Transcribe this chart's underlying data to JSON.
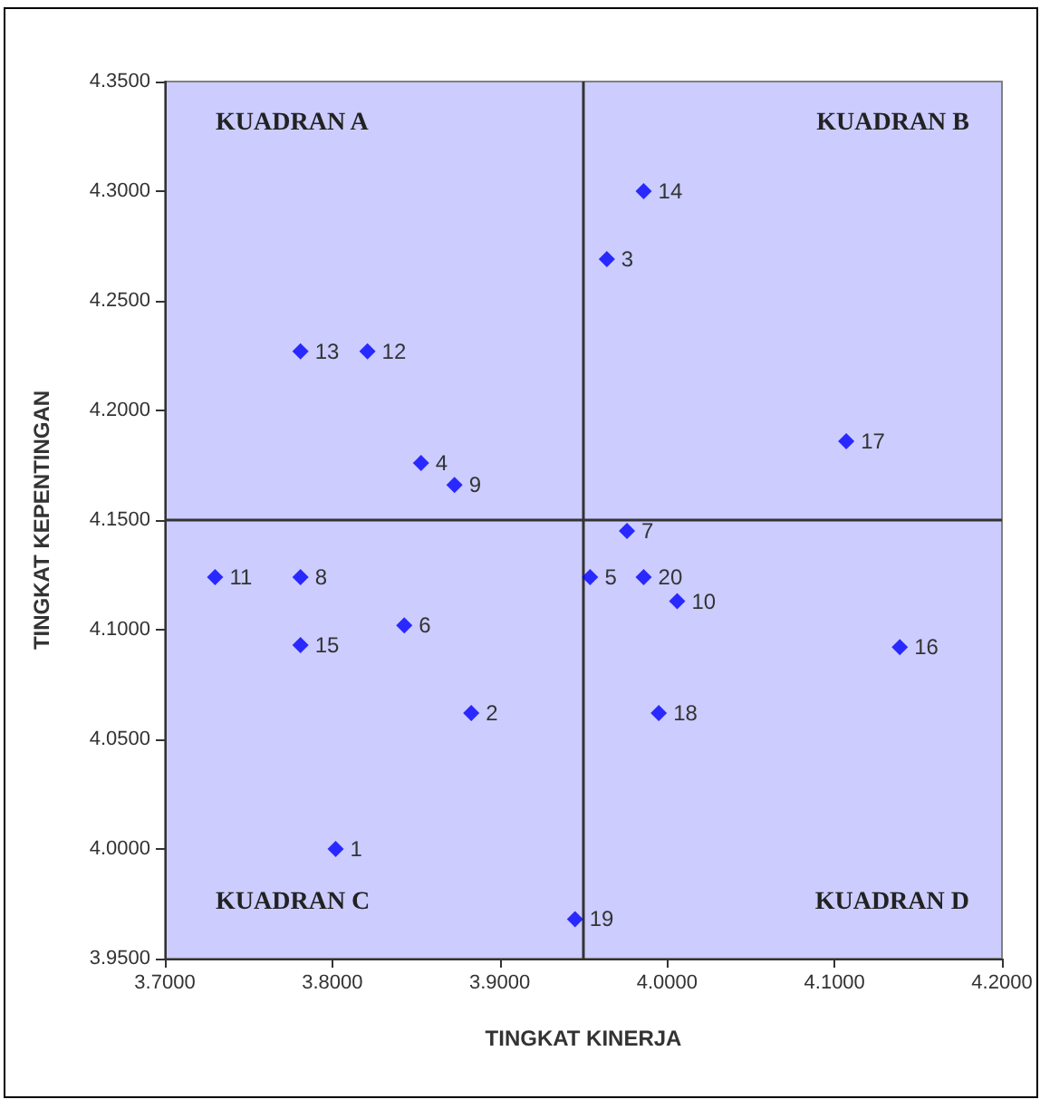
{
  "chart_data": {
    "type": "scatter",
    "xlabel": "TINGKAT KINERJA",
    "ylabel": "TINGKAT KEPENTINGAN",
    "x": [
      3.802,
      3.883,
      3.964,
      3.853,
      3.954,
      3.843,
      3.976,
      3.781,
      3.873,
      4.006,
      3.73,
      3.821,
      3.781,
      3.986,
      3.781,
      4.139,
      4.107,
      3.995,
      3.945,
      3.986
    ],
    "series": [
      {
        "color": "#0000ff",
        "values": [
          4.0,
          4.062,
          4.269,
          4.176,
          4.124,
          4.102,
          4.145,
          4.124,
          4.166,
          4.113,
          4.124,
          4.227,
          4.227,
          4.3,
          4.093,
          4.092,
          4.186,
          4.062,
          3.968,
          4.124
        ]
      }
    ],
    "xlim": [
      3.7,
      4.2
    ],
    "ylim": [
      3.95,
      4.35
    ],
    "xticks": [
      {
        "value": 3.7,
        "label": "3.7000"
      },
      {
        "value": 3.8,
        "label": "3.8000"
      },
      {
        "value": 3.9,
        "label": "3.9000"
      },
      {
        "value": 4.0,
        "label": "4.0000"
      },
      {
        "value": 4.1,
        "label": "4.1000"
      },
      {
        "value": 4.2,
        "label": "4.2000"
      }
    ],
    "yticks": [
      {
        "value": 3.95,
        "label": "3.9500"
      },
      {
        "value": 4.0,
        "label": "4.0000"
      },
      {
        "value": 4.05,
        "label": "4.0500"
      },
      {
        "value": 4.1,
        "label": "4.1000"
      },
      {
        "value": 4.15,
        "label": "4.1500"
      },
      {
        "value": 4.2,
        "label": "4.2000"
      },
      {
        "value": 4.25,
        "label": "4.2500"
      },
      {
        "value": 4.3,
        "label": "4.3000"
      },
      {
        "value": 4.35,
        "label": "4.3500"
      }
    ],
    "ref_lines": [
      {
        "axis": "x",
        "value": 3.95,
        "color": "#333333"
      },
      {
        "axis": "y",
        "value": 4.15,
        "color": "#333333"
      }
    ],
    "annotations": [
      "KUADRAN A",
      "KUADRAN B",
      "KUADRAN C",
      "KUADRAN D",
      {
        "text": "1",
        "x": 3.802,
        "y": 4.0
      },
      {
        "text": "2",
        "x": 3.883,
        "y": 4.062
      },
      {
        "text": "3",
        "x": 3.964,
        "y": 4.269
      },
      {
        "text": "4",
        "x": 3.853,
        "y": 4.176
      },
      {
        "text": "5",
        "x": 3.954,
        "y": 4.124
      },
      {
        "text": "6",
        "x": 3.843,
        "y": 4.102
      },
      {
        "text": "7",
        "x": 3.976,
        "y": 4.145
      },
      {
        "text": "8",
        "x": 3.781,
        "y": 4.124
      },
      {
        "text": "9",
        "x": 3.873,
        "y": 4.166
      },
      {
        "text": "10",
        "x": 4.006,
        "y": 4.113
      },
      {
        "text": "11",
        "x": 3.73,
        "y": 4.124
      },
      {
        "text": "12",
        "x": 3.821,
        "y": 4.227
      },
      {
        "text": "13",
        "x": 3.781,
        "y": 4.227
      },
      {
        "text": "14",
        "x": 3.986,
        "y": 4.3
      },
      {
        "text": "15",
        "x": 3.781,
        "y": 4.093
      },
      {
        "text": "16",
        "x": 4.139,
        "y": 4.092
      },
      {
        "text": "17",
        "x": 4.107,
        "y": 4.186
      },
      {
        "text": "18",
        "x": 3.995,
        "y": 4.062
      },
      {
        "text": "19",
        "x": 3.945,
        "y": 3.968
      },
      {
        "text": "20",
        "x": 3.986,
        "y": 4.124
      }
    ],
    "marker": "diamond",
    "grid": false
  }
}
